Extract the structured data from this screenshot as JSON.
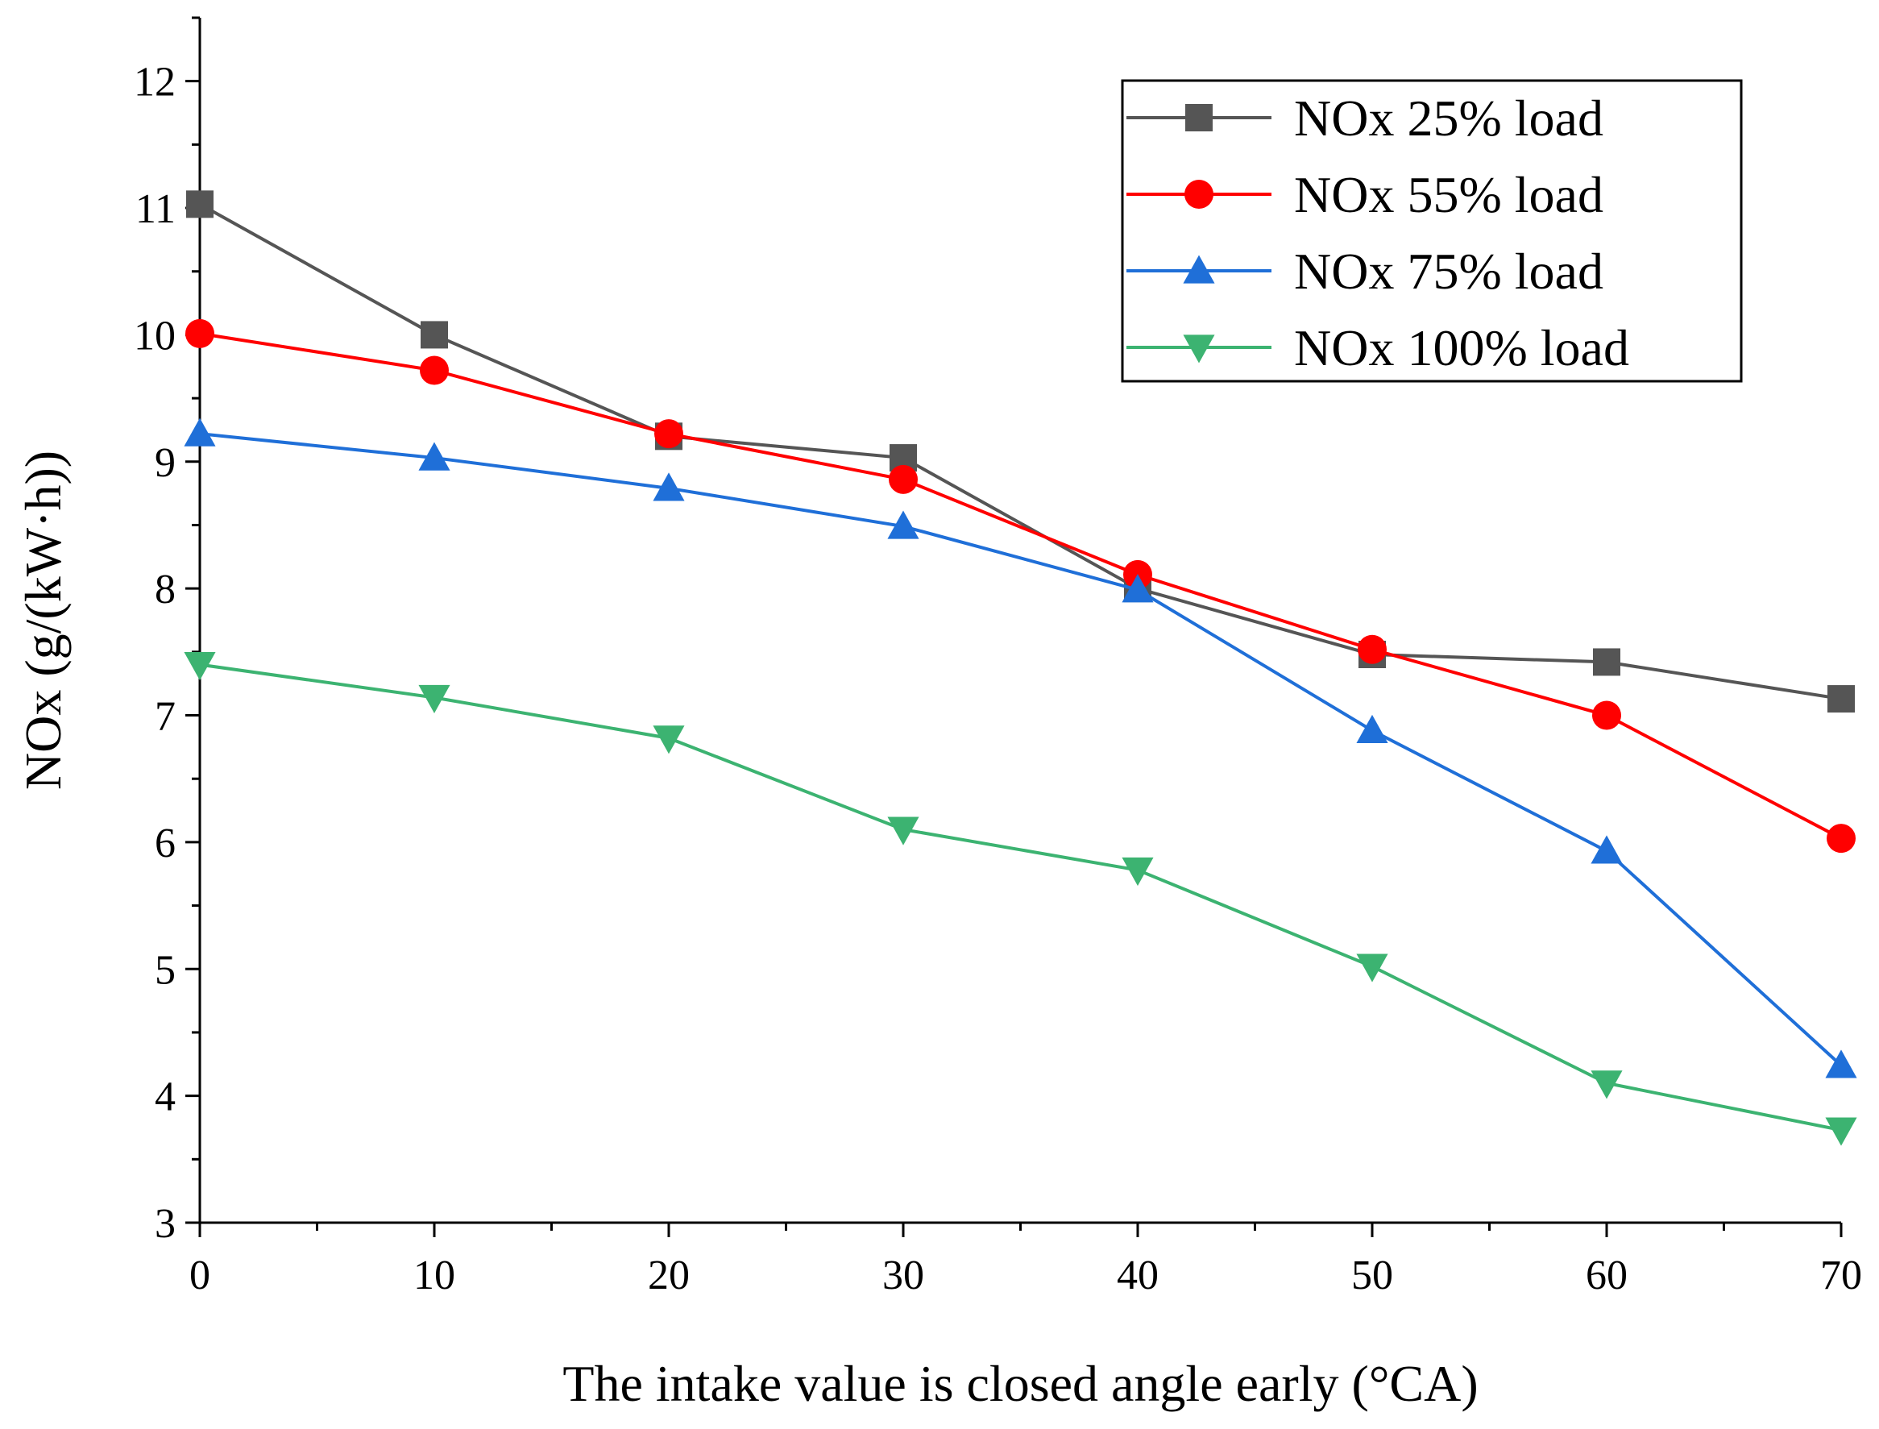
{
  "chart_data": {
    "type": "line",
    "title": "",
    "xlabel": "The intake value is closed angle early (°CA)",
    "ylabel": "NOx (g/(kW·h))",
    "xlim": [
      0,
      70
    ],
    "ylim": [
      3,
      12.5
    ],
    "x_ticks": [
      0,
      10,
      20,
      30,
      40,
      50,
      60,
      70
    ],
    "y_ticks": [
      3,
      4,
      5,
      6,
      7,
      8,
      9,
      10,
      11,
      12
    ],
    "x_tick_labels": [
      "0",
      "10",
      "20",
      "30",
      "40",
      "50",
      "60",
      "70"
    ],
    "y_tick_labels": [
      "3",
      "4",
      "5",
      "6",
      "7",
      "8",
      "9",
      "10",
      "11",
      "12"
    ],
    "grid": false,
    "legend_position": "top-right",
    "x": [
      0,
      10,
      20,
      30,
      40,
      50,
      60,
      70
    ],
    "series": [
      {
        "name": "NOx 25% load",
        "color": "#555555",
        "marker": "square",
        "values": [
          11.03,
          10.0,
          9.2,
          9.03,
          8.0,
          7.48,
          7.42,
          7.13
        ]
      },
      {
        "name": "NOx 55% load",
        "color": "#ff0000",
        "marker": "circle",
        "values": [
          10.01,
          9.72,
          9.22,
          8.86,
          8.11,
          7.52,
          7.0,
          6.03
        ]
      },
      {
        "name": "NOx 75% load",
        "color": "#1f6fd8",
        "marker": "triangle-up",
        "values": [
          9.22,
          9.03,
          8.79,
          8.49,
          7.99,
          6.88,
          5.93,
          4.24
        ]
      },
      {
        "name": "NOx 100% load",
        "color": "#3cb371",
        "marker": "triangle-down",
        "values": [
          7.4,
          7.14,
          6.82,
          6.1,
          5.78,
          5.02,
          4.1,
          3.73
        ]
      }
    ]
  }
}
